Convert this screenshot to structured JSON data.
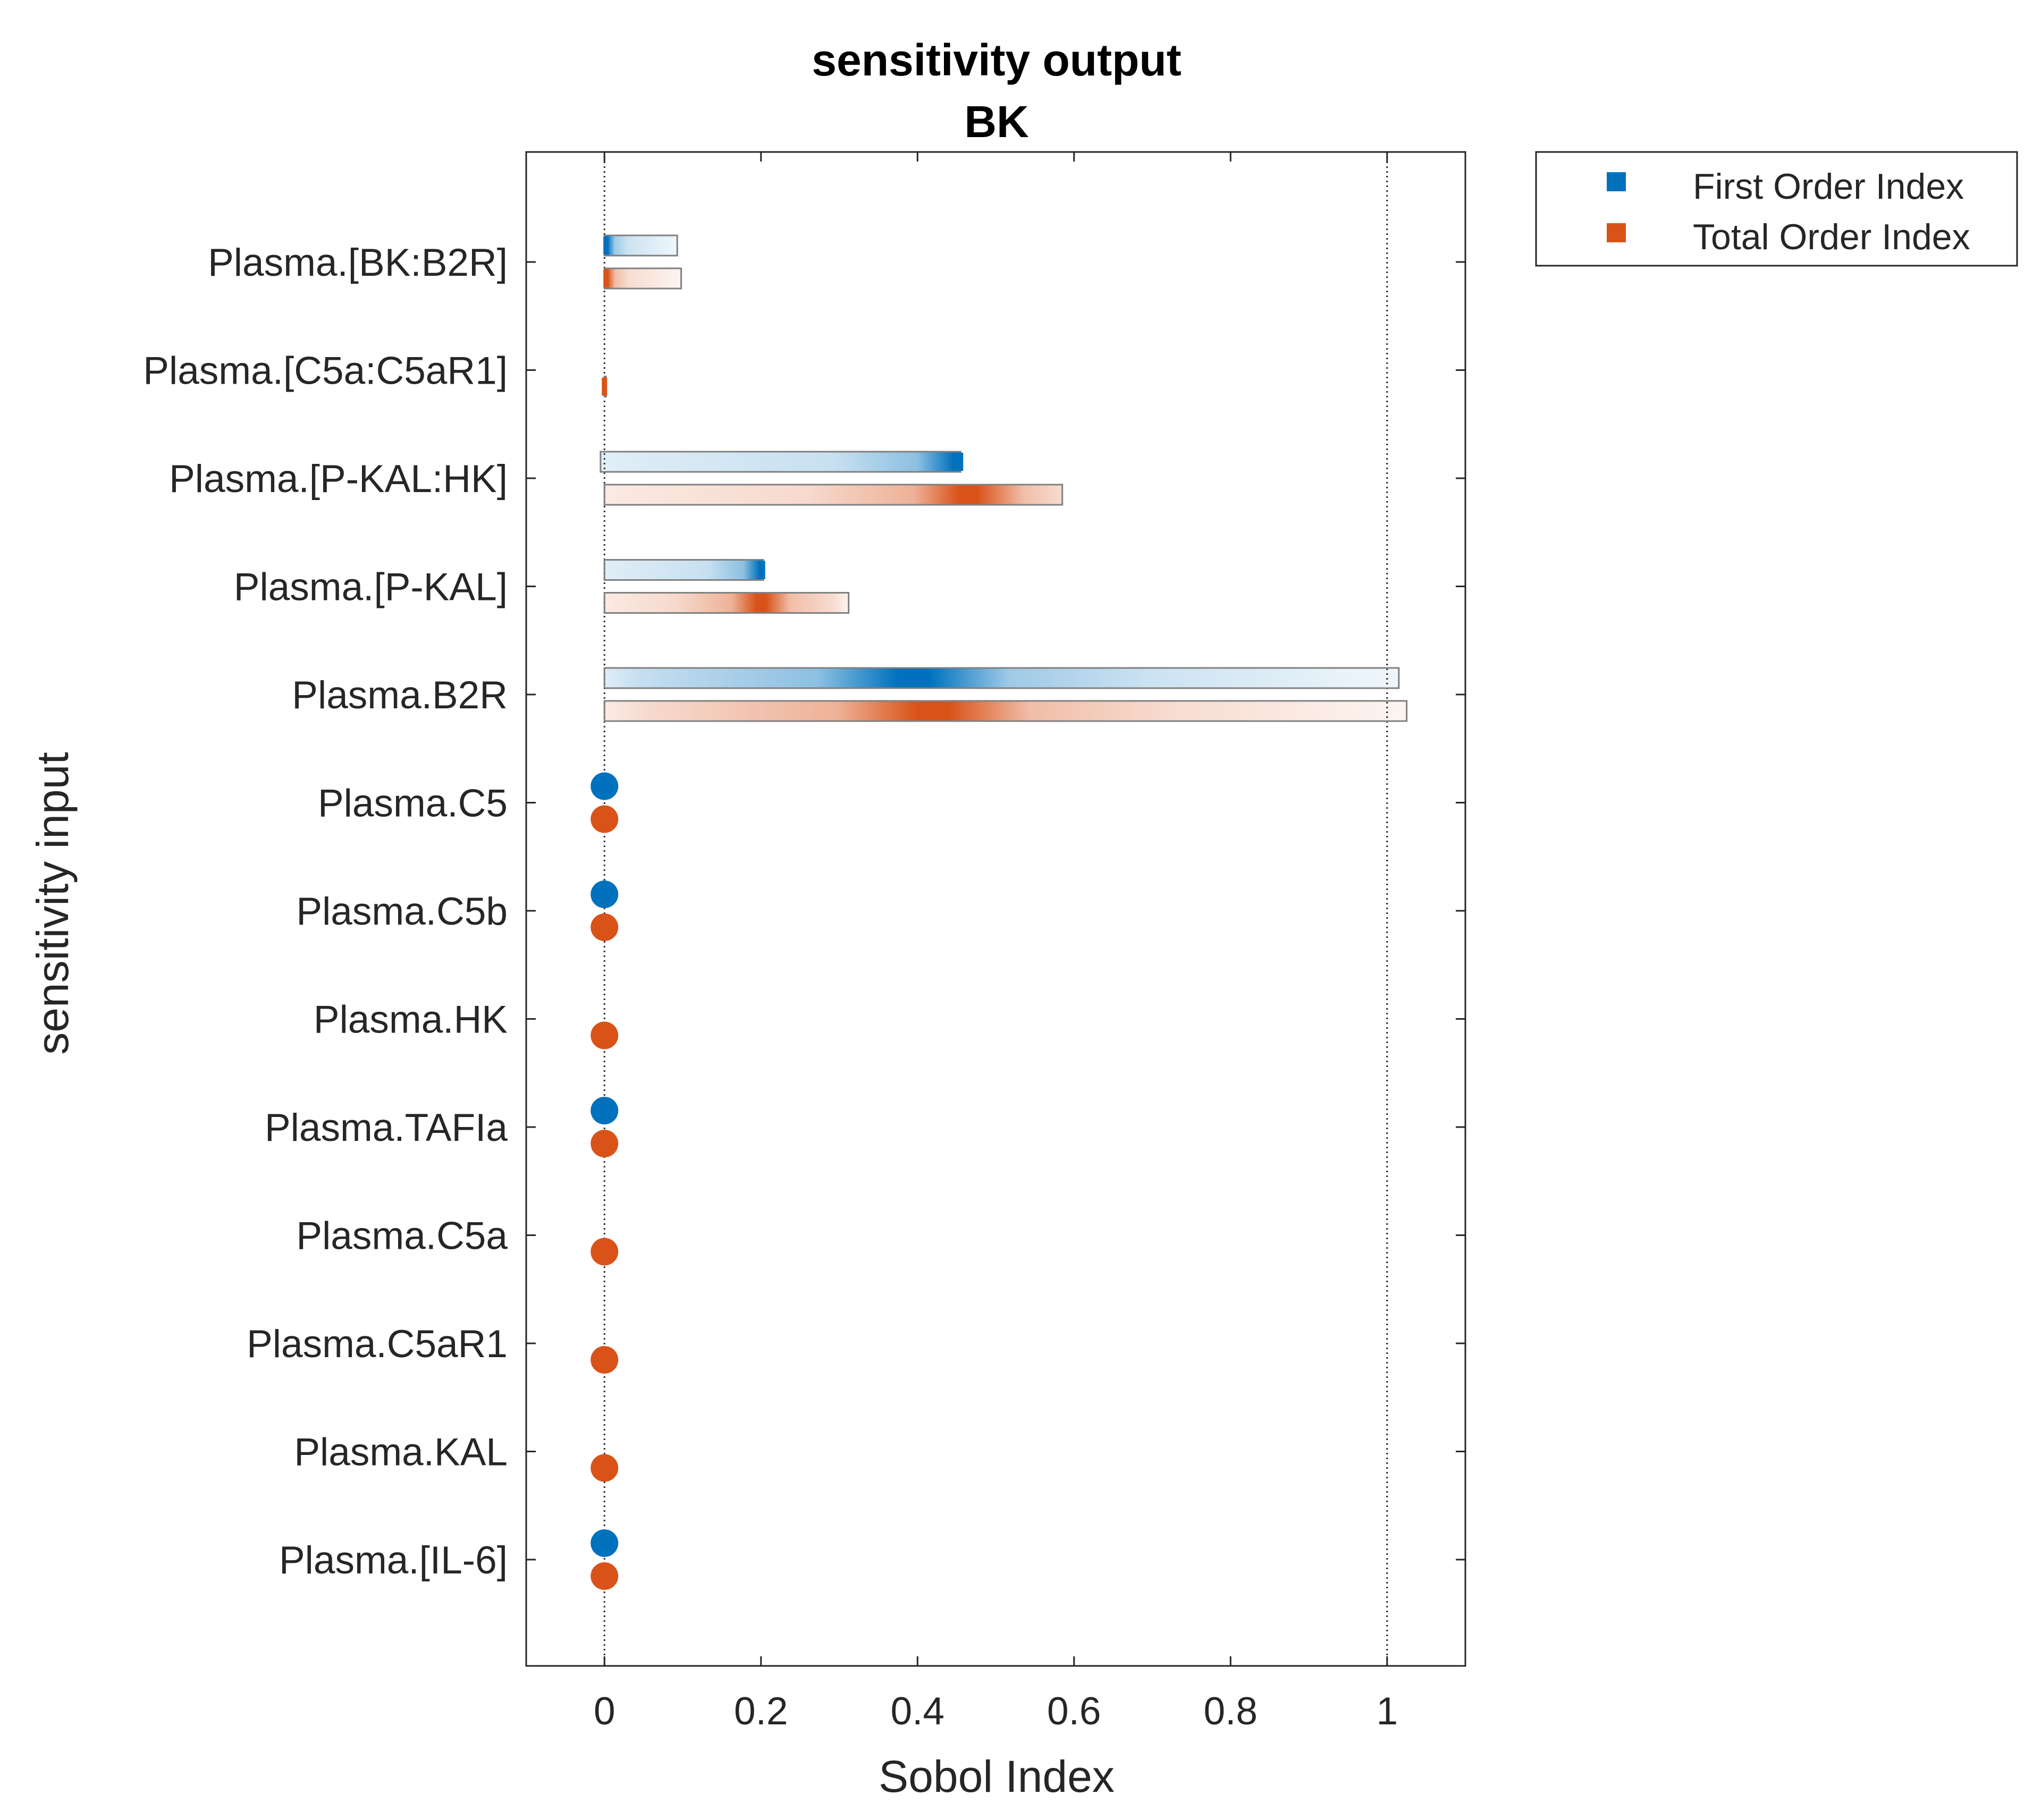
{
  "chart_data": {
    "type": "bar",
    "title": "sensitivity output",
    "subtitle": "BK",
    "xlabel": "Sobol Index",
    "ylabel": "sensitivity input",
    "xlim": [
      -0.1,
      1.1
    ],
    "xticks": [
      "0",
      "0.2",
      "0.4",
      "0.6",
      "0.8",
      "1"
    ],
    "xtick_values": [
      0,
      0.2,
      0.4,
      0.6,
      0.8,
      1
    ],
    "reference_lines": [
      0,
      1
    ],
    "grid": false,
    "legend_position": "outside-top-right",
    "colors": {
      "first": "#0072BD",
      "total": "#D95319",
      "axis": "#262626",
      "bar_edge": "#808080"
    },
    "categories": [
      "Plasma.[BK:B2R]",
      "Plasma.[C5a:C5aR1]",
      "Plasma.[P-KAL:HK]",
      "Plasma.[P-KAL]",
      "Plasma.B2R",
      "Plasma.C5",
      "Plasma.C5b",
      "Plasma.HK",
      "Plasma.TAFIa",
      "Plasma.C5a",
      "Plasma.C5aR1",
      "Plasma.KAL",
      "Plasma.[IL-6]"
    ],
    "series": [
      {
        "name": "First Order Index",
        "display": [
          "bar",
          "none",
          "bar",
          "bar",
          "bar",
          "point",
          "point",
          "none",
          "point",
          "none",
          "none",
          "none",
          "point"
        ],
        "values": [
          0.002,
          0,
          0.455,
          0.202,
          0.395,
          0,
          0,
          0,
          0,
          0,
          0,
          0,
          0
        ],
        "upper": [
          0.093,
          0,
          0.455,
          0.203,
          1.015,
          0,
          0,
          0,
          0,
          0,
          0,
          0,
          0
        ],
        "lower": [
          0.0,
          0,
          -0.005,
          0.0,
          0.0,
          0,
          0,
          0,
          0,
          0,
          0,
          0,
          0
        ]
      },
      {
        "name": "Total Order Index",
        "display": [
          "bar",
          "bar",
          "bar",
          "bar",
          "bar",
          "point",
          "point",
          "point",
          "point",
          "point",
          "point",
          "point",
          "point"
        ],
        "values": [
          0.002,
          0,
          0.465,
          0.2,
          0.42,
          0,
          0,
          0,
          0,
          0,
          0,
          0,
          0
        ],
        "upper": [
          0.098,
          0.001,
          0.585,
          0.312,
          1.025,
          0,
          0,
          0,
          0,
          0,
          0,
          0,
          0
        ],
        "lower": [
          0.0,
          0.0,
          0.0,
          0.0,
          0.0,
          0,
          0,
          0,
          0,
          0,
          0,
          0,
          0
        ]
      }
    ]
  }
}
